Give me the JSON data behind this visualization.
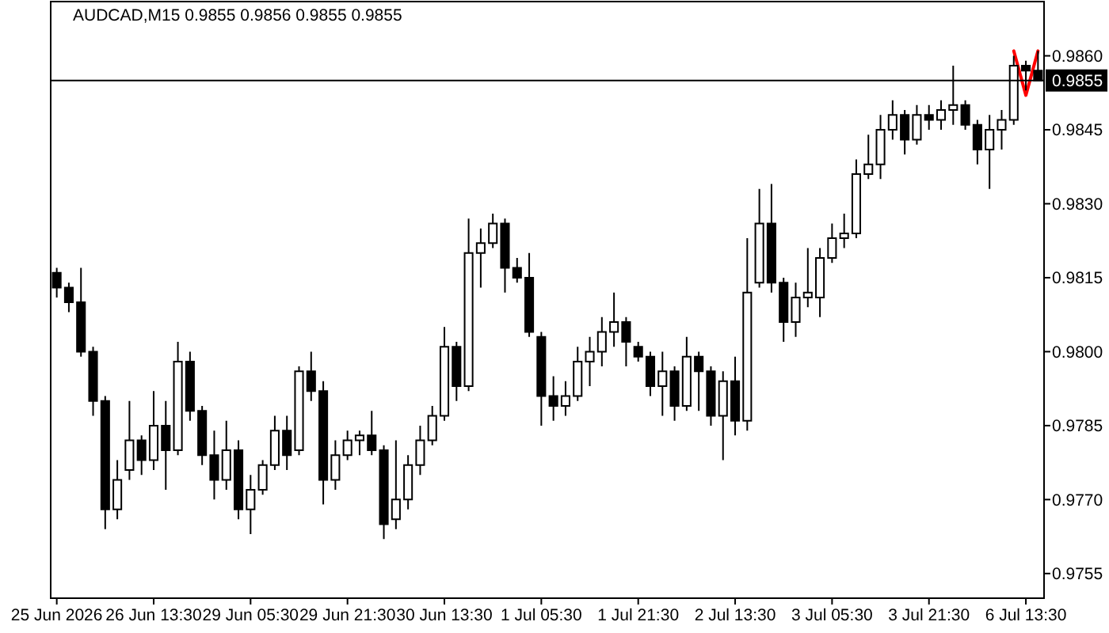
{
  "chart_data": {
    "type": "candlestick",
    "title": "AUDCAD,M15 0.9855 0.9856 0.9855 0.9855",
    "color": "#000000",
    "categories": [
      "25 Jun 2026",
      null,
      null,
      null,
      null,
      null,
      null,
      null,
      "26 Jun 13:30",
      null,
      null,
      null,
      null,
      null,
      null,
      null,
      "29 Jun 05:30",
      null,
      null,
      null,
      null,
      null,
      null,
      null,
      "29 Jun 21:30",
      null,
      null,
      null,
      null,
      null,
      null,
      null,
      "30 Jun 13:30",
      null,
      null,
      null,
      null,
      null,
      null,
      null,
      "1 Jul 05:30",
      null,
      null,
      null,
      null,
      null,
      null,
      null,
      "1 Jul 21:30",
      null,
      null,
      null,
      null,
      null,
      null,
      null,
      "2 Jul 13:30",
      null,
      null,
      null,
      null,
      null,
      null,
      null,
      "3 Jul 05:30",
      null,
      null,
      null,
      null,
      null,
      null,
      null,
      "3 Jul 21:30",
      null,
      null,
      null,
      null,
      null,
      null,
      null,
      "6 Jul 13:30",
      null
    ],
    "ohlc": [
      [
        0.9816,
        0.9817,
        0.9811,
        0.9813
      ],
      [
        0.9813,
        0.9814,
        0.9808,
        0.981
      ],
      [
        0.981,
        0.9817,
        0.9799,
        0.98
      ],
      [
        0.98,
        0.9801,
        0.9787,
        0.979
      ],
      [
        0.979,
        0.9791,
        0.9764,
        0.9768
      ],
      [
        0.9768,
        0.9778,
        0.9766,
        0.9774
      ],
      [
        0.9776,
        0.979,
        0.9774,
        0.9782
      ],
      [
        0.9782,
        0.9783,
        0.9775,
        0.9778
      ],
      [
        0.9778,
        0.9792,
        0.9776,
        0.9785
      ],
      [
        0.9785,
        0.979,
        0.9772,
        0.978
      ],
      [
        0.978,
        0.9802,
        0.9779,
        0.9798
      ],
      [
        0.9798,
        0.98,
        0.9786,
        0.9788
      ],
      [
        0.9788,
        0.9789,
        0.9777,
        0.9779
      ],
      [
        0.9779,
        0.9784,
        0.977,
        0.9774
      ],
      [
        0.9774,
        0.9786,
        0.9772,
        0.978
      ],
      [
        0.978,
        0.9782,
        0.9766,
        0.9768
      ],
      [
        0.9768,
        0.9775,
        0.9763,
        0.9772
      ],
      [
        0.9772,
        0.9778,
        0.9771,
        0.9777
      ],
      [
        0.9777,
        0.9787,
        0.9776,
        0.9784
      ],
      [
        0.9784,
        0.9787,
        0.9776,
        0.9779
      ],
      [
        0.978,
        0.9797,
        0.9779,
        0.9796
      ],
      [
        0.9796,
        0.98,
        0.979,
        0.9792
      ],
      [
        0.9792,
        0.9794,
        0.9769,
        0.9774
      ],
      [
        0.9774,
        0.9782,
        0.9772,
        0.9779
      ],
      [
        0.9779,
        0.9784,
        0.9778,
        0.9782
      ],
      [
        0.9782,
        0.9784,
        0.9779,
        0.9783
      ],
      [
        0.9783,
        0.9788,
        0.9779,
        0.978
      ],
      [
        0.978,
        0.9781,
        0.9762,
        0.9765
      ],
      [
        0.9766,
        0.9782,
        0.9764,
        0.977
      ],
      [
        0.977,
        0.9779,
        0.9768,
        0.9777
      ],
      [
        0.9777,
        0.9785,
        0.9775,
        0.9782
      ],
      [
        0.9782,
        0.9789,
        0.9781,
        0.9787
      ],
      [
        0.9787,
        0.9805,
        0.9786,
        0.9801
      ],
      [
        0.9801,
        0.9802,
        0.979,
        0.9793
      ],
      [
        0.9793,
        0.9827,
        0.9792,
        0.982
      ],
      [
        0.982,
        0.9825,
        0.9813,
        0.9822
      ],
      [
        0.9822,
        0.9828,
        0.9821,
        0.9826
      ],
      [
        0.9826,
        0.9827,
        0.9812,
        0.9817
      ],
      [
        0.9817,
        0.9819,
        0.9814,
        0.9815
      ],
      [
        0.9815,
        0.982,
        0.9803,
        0.9804
      ],
      [
        0.9803,
        0.9804,
        0.9785,
        0.9791
      ],
      [
        0.9791,
        0.9795,
        0.9786,
        0.9789
      ],
      [
        0.9789,
        0.9794,
        0.9787,
        0.9791
      ],
      [
        0.9791,
        0.9801,
        0.979,
        0.9798
      ],
      [
        0.9798,
        0.9803,
        0.9793,
        0.98
      ],
      [
        0.98,
        0.9807,
        0.9797,
        0.9804
      ],
      [
        0.9804,
        0.9812,
        0.9801,
        0.9806
      ],
      [
        0.9806,
        0.9807,
        0.9797,
        0.9802
      ],
      [
        0.9801,
        0.9802,
        0.9798,
        0.9799
      ],
      [
        0.9799,
        0.98,
        0.9791,
        0.9793
      ],
      [
        0.9793,
        0.98,
        0.9787,
        0.9796
      ],
      [
        0.9796,
        0.9797,
        0.9786,
        0.9789
      ],
      [
        0.9789,
        0.9803,
        0.9788,
        0.9799
      ],
      [
        0.9799,
        0.98,
        0.9788,
        0.9796
      ],
      [
        0.9796,
        0.9797,
        0.9785,
        0.9787
      ],
      [
        0.9787,
        0.9796,
        0.9778,
        0.9794
      ],
      [
        0.9794,
        0.9799,
        0.9783,
        0.9786
      ],
      [
        0.9786,
        0.9823,
        0.9784,
        0.9812
      ],
      [
        0.9814,
        0.9833,
        0.9813,
        0.9826
      ],
      [
        0.9826,
        0.9834,
        0.9812,
        0.9814
      ],
      [
        0.9814,
        0.9815,
        0.9802,
        0.9806
      ],
      [
        0.9806,
        0.9814,
        0.9803,
        0.9811
      ],
      [
        0.9811,
        0.9821,
        0.9809,
        0.9812
      ],
      [
        0.9811,
        0.9821,
        0.9807,
        0.9819
      ],
      [
        0.9819,
        0.9826,
        0.9818,
        0.9823
      ],
      [
        0.9823,
        0.9828,
        0.9821,
        0.9824
      ],
      [
        0.9824,
        0.9839,
        0.9823,
        0.9836
      ],
      [
        0.9836,
        0.9844,
        0.9835,
        0.9838
      ],
      [
        0.9838,
        0.9848,
        0.9835,
        0.9845
      ],
      [
        0.9845,
        0.9851,
        0.9843,
        0.9848
      ],
      [
        0.9848,
        0.9849,
        0.984,
        0.9843
      ],
      [
        0.9843,
        0.985,
        0.9842,
        0.9848
      ],
      [
        0.9848,
        0.985,
        0.9845,
        0.9847
      ],
      [
        0.9847,
        0.9851,
        0.9845,
        0.9849
      ],
      [
        0.9849,
        0.9858,
        0.9846,
        0.985
      ],
      [
        0.985,
        0.9851,
        0.9845,
        0.9846
      ],
      [
        0.9846,
        0.9847,
        0.9838,
        0.9841
      ],
      [
        0.9841,
        0.9848,
        0.9833,
        0.9845
      ],
      [
        0.9845,
        0.9849,
        0.9841,
        0.9847
      ],
      [
        0.9847,
        0.986,
        0.9846,
        0.9858
      ],
      [
        0.9858,
        0.9859,
        0.9853,
        0.9857
      ],
      [
        0.9857,
        0.9861,
        0.9855,
        0.9855
      ]
    ],
    "series": [
      {
        "type": "line",
        "color": "#ff0000",
        "values": [
          null,
          null,
          null,
          null,
          null,
          null,
          null,
          null,
          null,
          null,
          null,
          null,
          null,
          null,
          null,
          null,
          null,
          null,
          null,
          null,
          null,
          null,
          null,
          null,
          null,
          null,
          null,
          null,
          null,
          null,
          null,
          null,
          null,
          null,
          null,
          null,
          null,
          null,
          null,
          null,
          null,
          null,
          null,
          null,
          null,
          null,
          null,
          null,
          null,
          null,
          null,
          null,
          null,
          null,
          null,
          null,
          null,
          null,
          null,
          null,
          null,
          null,
          null,
          null,
          null,
          null,
          null,
          null,
          null,
          null,
          null,
          null,
          null,
          null,
          null,
          null,
          null,
          null,
          null,
          0.9861,
          0.9852,
          0.9861
        ]
      }
    ],
    "ylim": [
      0.975,
      0.9871
    ],
    "yticks": [
      0.9755,
      {
        "value": 0.977,
        "label": "0.9770"
      },
      0.9785,
      {
        "value": 0.98,
        "label": "0.9800"
      },
      0.9815,
      {
        "value": 0.983,
        "label": "0.9830"
      },
      0.9845,
      {
        "value": 0.986,
        "label": "0.9860"
      }
    ],
    "ref_lines": [
      {
        "axis": "y",
        "value": 0.9855,
        "label": "0.9855",
        "color": "#000000"
      }
    ]
  }
}
